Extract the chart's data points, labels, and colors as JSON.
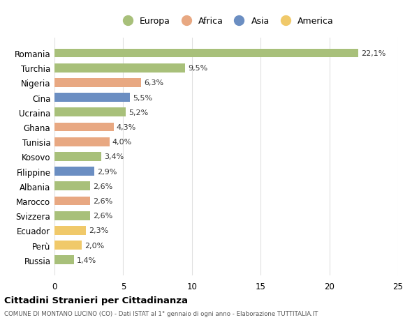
{
  "countries": [
    "Romania",
    "Turchia",
    "Nigeria",
    "Cina",
    "Ucraina",
    "Ghana",
    "Tunisia",
    "Kosovo",
    "Filippine",
    "Albania",
    "Marocco",
    "Svizzera",
    "Ecuador",
    "Perù",
    "Russia"
  ],
  "values": [
    22.1,
    9.5,
    6.3,
    5.5,
    5.2,
    4.3,
    4.0,
    3.4,
    2.9,
    2.6,
    2.6,
    2.6,
    2.3,
    2.0,
    1.4
  ],
  "continents": [
    "Europa",
    "Europa",
    "Africa",
    "Asia",
    "Europa",
    "Africa",
    "Africa",
    "Europa",
    "Asia",
    "Europa",
    "Africa",
    "Europa",
    "America",
    "America",
    "Europa"
  ],
  "colors": {
    "Europa": "#a8c07a",
    "Africa": "#e8a882",
    "Asia": "#6b8ec2",
    "America": "#f0c96a"
  },
  "legend_order": [
    "Europa",
    "Africa",
    "Asia",
    "America"
  ],
  "title": "Cittadini Stranieri per Cittadinanza",
  "subtitle": "COMUNE DI MONTANO LUCINO (CO) - Dati ISTAT al 1° gennaio di ogni anno - Elaborazione TUTTITALIA.IT",
  "xlim": [
    0,
    25
  ],
  "xticks": [
    0,
    5,
    10,
    15,
    20,
    25
  ],
  "background_color": "#ffffff",
  "grid_color": "#e0e0e0"
}
